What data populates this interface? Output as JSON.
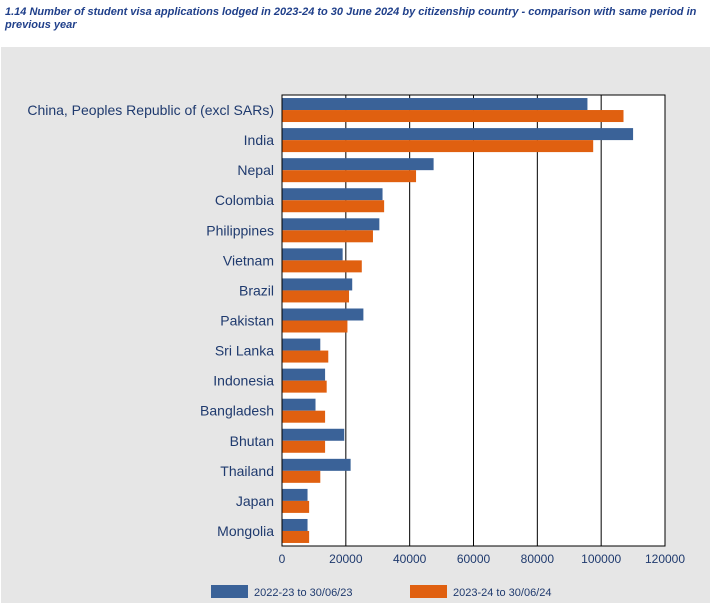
{
  "title": "1.14 Number of student visa applications lodged in 2023-24 to 30 June 2024 by citizenship country - comparison with same period in previous year",
  "colors": {
    "series1": "#3a6298",
    "series2": "#e06010",
    "panel": "#e6e6e6",
    "text": "#1f3a6e"
  },
  "chart_data": {
    "type": "bar",
    "orientation": "horizontal",
    "title": "1.14 Number of student visa applications lodged in 2023-24 to 30 June 2024 by citizenship country - comparison with same period in previous year",
    "categories": [
      "China, Peoples Republic of (excl SARs)",
      "India",
      "Nepal",
      "Colombia",
      "Philippines",
      "Vietnam",
      "Brazil",
      "Pakistan",
      "Sri Lanka",
      "Indonesia",
      "Bangladesh",
      "Bhutan",
      "Thailand",
      "Japan",
      "Mongolia"
    ],
    "series": [
      {
        "name": "2022-23 to 30/06/23",
        "values": [
          95700,
          110000,
          47500,
          31500,
          30500,
          19000,
          22000,
          25500,
          12000,
          13500,
          10500,
          19500,
          21500,
          8000,
          8000
        ]
      },
      {
        "name": "2023-24 to 30/06/24",
        "values": [
          107000,
          97500,
          42000,
          32000,
          28500,
          25000,
          21000,
          20500,
          14500,
          14000,
          13500,
          13500,
          12000,
          8500,
          8500
        ]
      }
    ],
    "xlim": [
      0,
      120000
    ],
    "xticks": [
      "0",
      "20000",
      "40000",
      "60000",
      "80000",
      "100000",
      "120000"
    ],
    "grid": true,
    "legend": "bottom"
  }
}
